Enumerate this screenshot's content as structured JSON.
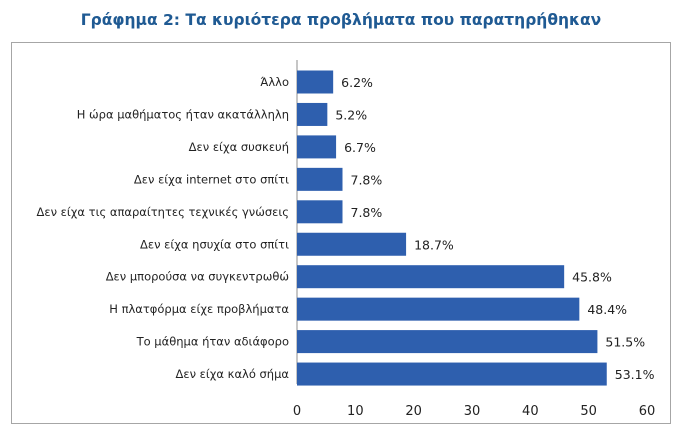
{
  "chart_data": {
    "type": "bar",
    "orientation": "horizontal",
    "title": "Γράφημα 2: Τα κυριότερα προβλήματα που παρατηρήθηκαν",
    "categories": [
      "Άλλο",
      "Η ώρα μαθήματος ήταν ακατάλληλη",
      "Δεν είχα συσκευή",
      "Δεν είχα internet στο σπίτι",
      "Δεν είχα τις απαραίτητες τεχνικές γνώσεις",
      "Δεν είχα ησυχία στο σπίτι",
      "Δεν μπορούσα να συγκεντρωθώ",
      "Η πλατφόρμα είχε προβλήματα",
      "Το μάθημα ήταν αδιάφορο",
      "Δεν είχα καλό σήμα"
    ],
    "values": [
      6.2,
      5.2,
      6.7,
      7.8,
      7.8,
      18.7,
      45.8,
      48.4,
      51.5,
      53.1
    ],
    "value_labels": [
      "6.2%",
      "5.2%",
      "6.7%",
      "7.8%",
      "7.8%",
      "18.7%",
      "45.8%",
      "48.4%",
      "51.5%",
      "53.1%"
    ],
    "xlim": [
      0,
      60
    ],
    "xticks": [
      "0",
      "10",
      "20",
      "30",
      "40",
      "50",
      "60"
    ],
    "xlabel": "",
    "ylabel": "",
    "grid": false,
    "bar_color": "#2e5fae",
    "title_color": "#1f5a93"
  }
}
